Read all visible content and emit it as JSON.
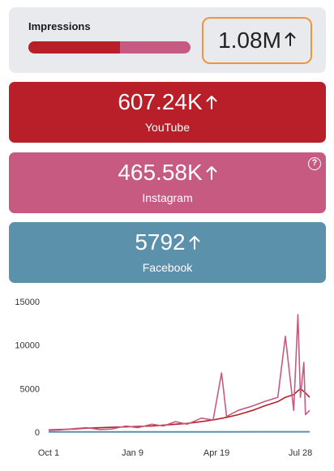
{
  "impressions": {
    "label": "Impressions",
    "value": "1.08M",
    "youtube_share": 0.566
  },
  "platforms": [
    {
      "name": "YouTube",
      "value": "607.24K",
      "color": "#b81f28"
    },
    {
      "name": "Instagram",
      "value": "465.58K",
      "color": "#c75a80",
      "help_icon": "?"
    },
    {
      "name": "Facebook",
      "value": "5792",
      "color": "#5b91ab"
    }
  ],
  "chart_data": {
    "type": "line",
    "y_ticks": [
      "15000",
      "10000",
      "5000",
      "0"
    ],
    "ylim": [
      0,
      15000
    ],
    "x_ticks": [
      "Oct 1",
      "Jan 9",
      "Apr 19",
      "Jul 28"
    ],
    "xlim": [
      "Oct 1",
      "Aug 8"
    ],
    "grid": false,
    "legend": "none",
    "series": [
      {
        "color": "#b81f28",
        "x": [
          "Oct 1",
          "Oct 15",
          "Nov 1",
          "Nov 15",
          "Dec 1",
          "Dec 15",
          "Jan 1",
          "Jan 15",
          "Feb 1",
          "Feb 15",
          "Mar 1",
          "Mar 15",
          "Apr 1",
          "Apr 15",
          "May 1",
          "May 15",
          "Jun 1",
          "Jun 15",
          "Jul 1",
          "Jul 10",
          "Jul 20",
          "Jul 28",
          "Aug 3",
          "Aug 8"
        ],
        "values": [
          250,
          300,
          350,
          450,
          500,
          550,
          600,
          650,
          700,
          800,
          900,
          1000,
          1200,
          1400,
          1700,
          2000,
          2500,
          3000,
          3500,
          4000,
          4300,
          5000,
          4500,
          4000
        ]
      },
      {
        "color": "#c75a80",
        "x": [
          "Oct 1",
          "Oct 15",
          "Nov 1",
          "Nov 15",
          "Dec 1",
          "Dec 15",
          "Jan 1",
          "Jan 15",
          "Feb 1",
          "Feb 15",
          "Mar 1",
          "Mar 15",
          "Apr 1",
          "Apr 15",
          "Apr 25",
          "May 1",
          "May 15",
          "Jun 1",
          "Jun 15",
          "Jul 1",
          "Jul 10",
          "Jul 20",
          "Jul 25",
          "Jul 28",
          "Aug 1",
          "Aug 3",
          "Aug 8"
        ],
        "values": [
          200,
          250,
          400,
          500,
          300,
          350,
          700,
          500,
          900,
          700,
          1200,
          900,
          1600,
          1400,
          6800,
          1800,
          2500,
          3000,
          3500,
          4000,
          11000,
          2500,
          13500,
          4000,
          8000,
          2000,
          2500
        ]
      },
      {
        "color": "#5b91ab",
        "x": [
          "Oct 1",
          "Jan 1",
          "Apr 1",
          "Jul 1",
          "Aug 8"
        ],
        "values": [
          20,
          20,
          30,
          40,
          40
        ]
      }
    ]
  }
}
